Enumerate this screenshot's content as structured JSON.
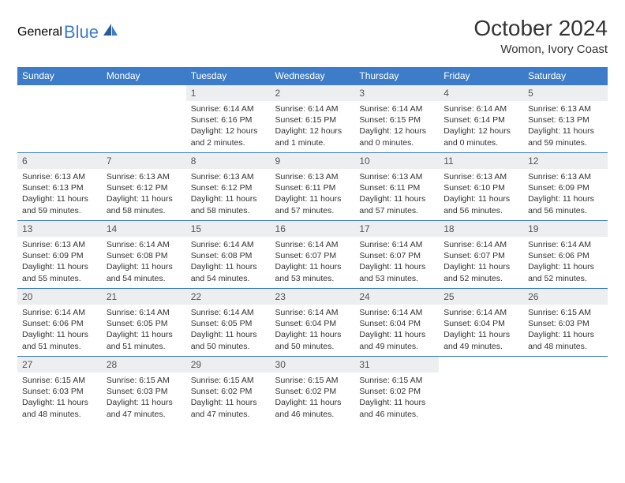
{
  "logo": {
    "general": "General",
    "blue": "Blue"
  },
  "header": {
    "month": "October 2024",
    "location": "Womon, Ivory Coast"
  },
  "colors": {
    "header_bg": "#3d7cc9",
    "header_text": "#ffffff",
    "daynum_bg": "#eceeef",
    "border": "#3d7cc9",
    "text": "#333333",
    "logo_gray": "#6b6b6b",
    "logo_blue": "#3d7cc9"
  },
  "weekdays": [
    "Sunday",
    "Monday",
    "Tuesday",
    "Wednesday",
    "Thursday",
    "Friday",
    "Saturday"
  ],
  "grid": {
    "first_weekday_index": 2,
    "days_in_month": 31
  },
  "days": {
    "1": {
      "sunrise": "6:14 AM",
      "sunset": "6:16 PM",
      "daylight": "12 hours and 2 minutes."
    },
    "2": {
      "sunrise": "6:14 AM",
      "sunset": "6:15 PM",
      "daylight": "12 hours and 1 minute."
    },
    "3": {
      "sunrise": "6:14 AM",
      "sunset": "6:15 PM",
      "daylight": "12 hours and 0 minutes."
    },
    "4": {
      "sunrise": "6:14 AM",
      "sunset": "6:14 PM",
      "daylight": "12 hours and 0 minutes."
    },
    "5": {
      "sunrise": "6:13 AM",
      "sunset": "6:13 PM",
      "daylight": "11 hours and 59 minutes."
    },
    "6": {
      "sunrise": "6:13 AM",
      "sunset": "6:13 PM",
      "daylight": "11 hours and 59 minutes."
    },
    "7": {
      "sunrise": "6:13 AM",
      "sunset": "6:12 PM",
      "daylight": "11 hours and 58 minutes."
    },
    "8": {
      "sunrise": "6:13 AM",
      "sunset": "6:12 PM",
      "daylight": "11 hours and 58 minutes."
    },
    "9": {
      "sunrise": "6:13 AM",
      "sunset": "6:11 PM",
      "daylight": "11 hours and 57 minutes."
    },
    "10": {
      "sunrise": "6:13 AM",
      "sunset": "6:11 PM",
      "daylight": "11 hours and 57 minutes."
    },
    "11": {
      "sunrise": "6:13 AM",
      "sunset": "6:10 PM",
      "daylight": "11 hours and 56 minutes."
    },
    "12": {
      "sunrise": "6:13 AM",
      "sunset": "6:09 PM",
      "daylight": "11 hours and 56 minutes."
    },
    "13": {
      "sunrise": "6:13 AM",
      "sunset": "6:09 PM",
      "daylight": "11 hours and 55 minutes."
    },
    "14": {
      "sunrise": "6:14 AM",
      "sunset": "6:08 PM",
      "daylight": "11 hours and 54 minutes."
    },
    "15": {
      "sunrise": "6:14 AM",
      "sunset": "6:08 PM",
      "daylight": "11 hours and 54 minutes."
    },
    "16": {
      "sunrise": "6:14 AM",
      "sunset": "6:07 PM",
      "daylight": "11 hours and 53 minutes."
    },
    "17": {
      "sunrise": "6:14 AM",
      "sunset": "6:07 PM",
      "daylight": "11 hours and 53 minutes."
    },
    "18": {
      "sunrise": "6:14 AM",
      "sunset": "6:07 PM",
      "daylight": "11 hours and 52 minutes."
    },
    "19": {
      "sunrise": "6:14 AM",
      "sunset": "6:06 PM",
      "daylight": "11 hours and 52 minutes."
    },
    "20": {
      "sunrise": "6:14 AM",
      "sunset": "6:06 PM",
      "daylight": "11 hours and 51 minutes."
    },
    "21": {
      "sunrise": "6:14 AM",
      "sunset": "6:05 PM",
      "daylight": "11 hours and 51 minutes."
    },
    "22": {
      "sunrise": "6:14 AM",
      "sunset": "6:05 PM",
      "daylight": "11 hours and 50 minutes."
    },
    "23": {
      "sunrise": "6:14 AM",
      "sunset": "6:04 PM",
      "daylight": "11 hours and 50 minutes."
    },
    "24": {
      "sunrise": "6:14 AM",
      "sunset": "6:04 PM",
      "daylight": "11 hours and 49 minutes."
    },
    "25": {
      "sunrise": "6:14 AM",
      "sunset": "6:04 PM",
      "daylight": "11 hours and 49 minutes."
    },
    "26": {
      "sunrise": "6:15 AM",
      "sunset": "6:03 PM",
      "daylight": "11 hours and 48 minutes."
    },
    "27": {
      "sunrise": "6:15 AM",
      "sunset": "6:03 PM",
      "daylight": "11 hours and 48 minutes."
    },
    "28": {
      "sunrise": "6:15 AM",
      "sunset": "6:03 PM",
      "daylight": "11 hours and 47 minutes."
    },
    "29": {
      "sunrise": "6:15 AM",
      "sunset": "6:02 PM",
      "daylight": "11 hours and 47 minutes."
    },
    "30": {
      "sunrise": "6:15 AM",
      "sunset": "6:02 PM",
      "daylight": "11 hours and 46 minutes."
    },
    "31": {
      "sunrise": "6:15 AM",
      "sunset": "6:02 PM",
      "daylight": "11 hours and 46 minutes."
    }
  },
  "labels": {
    "sunrise": "Sunrise: ",
    "sunset": "Sunset: ",
    "daylight": "Daylight: "
  }
}
